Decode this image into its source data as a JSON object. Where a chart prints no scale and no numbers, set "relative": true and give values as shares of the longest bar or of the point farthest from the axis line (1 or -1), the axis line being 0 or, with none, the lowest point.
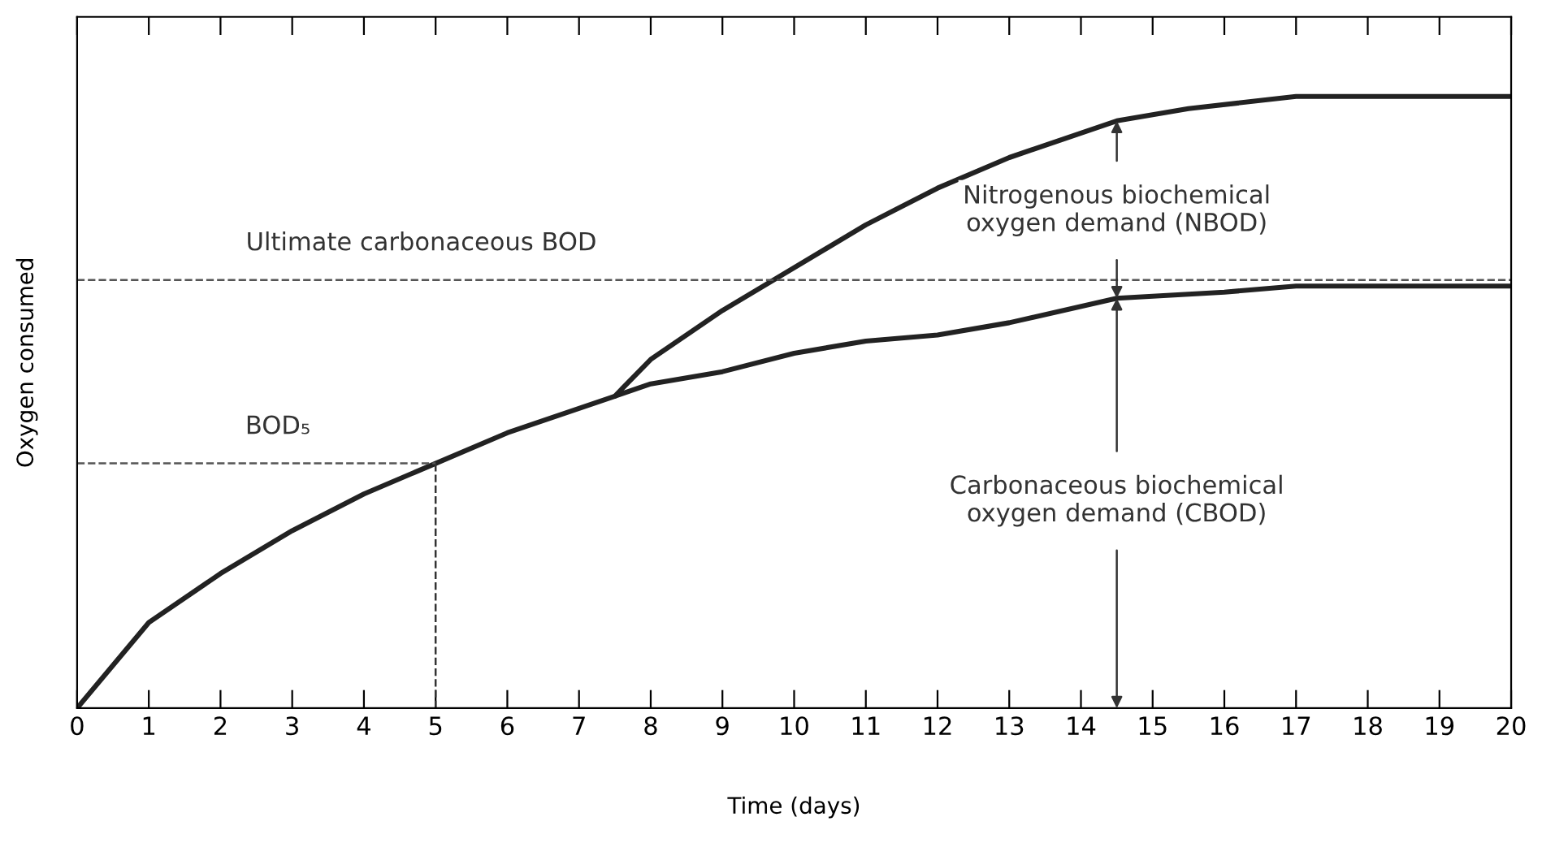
{
  "chart_data": {
    "type": "line",
    "relative": true,
    "xlabel": "Time (days)",
    "ylabel": "Oxygen consumed",
    "xlim": [
      0,
      20
    ],
    "xticks": [
      0,
      1,
      2,
      3,
      4,
      5,
      6,
      7,
      8,
      9,
      10,
      11,
      12,
      13,
      14,
      15,
      16,
      17,
      18,
      19,
      20
    ],
    "series": [
      {
        "color": "#222222",
        "x": [
          0,
          1,
          2,
          3,
          4,
          5,
          6,
          7,
          7.5,
          8,
          9,
          10,
          11,
          12,
          13,
          14.5,
          16,
          17,
          18,
          20
        ],
        "values": [
          0,
          0.14,
          0.22,
          0.29,
          0.35,
          0.4,
          0.45,
          0.49,
          0.51,
          0.53,
          0.55,
          0.58,
          0.6,
          0.61,
          0.63,
          0.67,
          0.68,
          0.69,
          0.69,
          0.69
        ]
      },
      {
        "color": "#222222",
        "x": [
          7.5,
          8,
          9,
          10,
          11,
          12,
          13,
          14.5,
          15.5,
          17,
          18,
          20
        ],
        "values": [
          0.51,
          0.57,
          0.65,
          0.72,
          0.79,
          0.85,
          0.9,
          0.96,
          0.98,
          1.0,
          1.0,
          1.0
        ]
      }
    ],
    "ref_lines": [
      {
        "axis": "y",
        "value": 0.7,
        "line_style": "dashed",
        "color": "#555555"
      },
      {
        "axis": "y",
        "value": 0.4,
        "line_style": "dashed",
        "color": "#555555"
      },
      {
        "axis": "x",
        "value": 5,
        "line_style": "dashed",
        "color": "#333333"
      }
    ],
    "annotations": [
      {
        "text": "Ultimate carbonaceous BOD",
        "x": 4.8,
        "y": 0.7
      },
      {
        "text": "BOD₅",
        "x": 2.8,
        "y": 0.4
      },
      "Nitrogenous biochemical\noxygen demand (NBOD)",
      "Carbonaceous biochemical\noxygen demand (CBOD)"
    ],
    "line_style": "solid",
    "marker": "none",
    "grid": false,
    "legend": false
  }
}
